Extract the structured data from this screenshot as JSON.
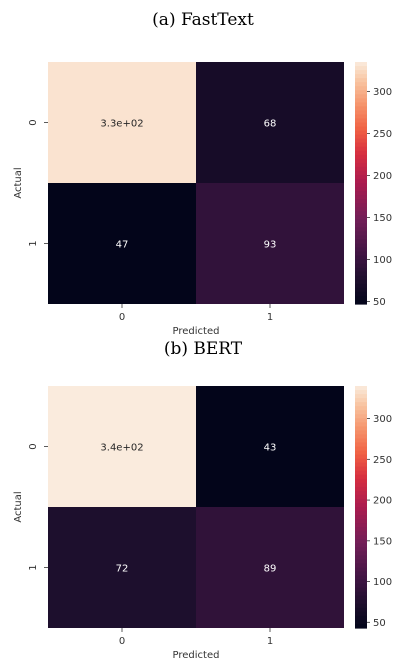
{
  "chart_data": [
    {
      "type": "heatmap",
      "title": "(a) FastText",
      "xlabel": "Predicted",
      "ylabel": "Actual",
      "x_ticks": [
        "0",
        "1"
      ],
      "y_ticks": [
        "0",
        "1"
      ],
      "values": [
        [
          330,
          68
        ],
        [
          47,
          93
        ]
      ],
      "annotations": [
        [
          "3.3e+02",
          "68"
        ],
        [
          "47",
          "93"
        ]
      ],
      "colorbar": {
        "ticks": [
          50,
          100,
          150,
          200,
          250,
          300
        ],
        "range": [
          47,
          335
        ]
      }
    },
    {
      "type": "heatmap",
      "title": "(b) BERT",
      "xlabel": "Predicted",
      "ylabel": "Actual",
      "x_ticks": [
        "0",
        "1"
      ],
      "y_ticks": [
        "0",
        "1"
      ],
      "values": [
        [
          340,
          43
        ],
        [
          72,
          89
        ]
      ],
      "annotations": [
        [
          "3.4e+02",
          "43"
        ],
        [
          "72",
          "89"
        ]
      ],
      "colorbar": {
        "ticks": [
          50,
          100,
          150,
          200,
          250,
          300
        ],
        "range": [
          43,
          340
        ]
      }
    }
  ]
}
